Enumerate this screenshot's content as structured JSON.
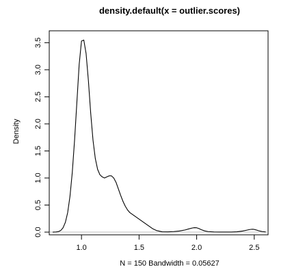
{
  "chart_data": {
    "type": "line",
    "title": "density.default(x = outlier.scores)",
    "xlabel": "N = 150   Bandwidth = 0.05627",
    "ylabel": "Density",
    "xlim": [
      0.72,
      2.62
    ],
    "ylim": [
      -0.05,
      3.72
    ],
    "x_ticks": [
      1.0,
      1.5,
      2.0,
      2.5
    ],
    "x_tick_labels": [
      "1.0",
      "1.5",
      "2.0",
      "2.5"
    ],
    "y_ticks": [
      0.0,
      0.5,
      1.0,
      1.5,
      2.0,
      2.5,
      3.0,
      3.5
    ],
    "y_tick_labels": [
      "0.0",
      "0.5",
      "1.0",
      "1.5",
      "2.0",
      "2.5",
      "3.0",
      "3.5"
    ],
    "grid": false,
    "zero_line": true,
    "colors": {
      "line": "#000000",
      "zero_line": "#bebebe",
      "axes": "#000000",
      "background": "#ffffff"
    },
    "series": [
      {
        "x": [
          0.75,
          0.78,
          0.8,
          0.82,
          0.84,
          0.86,
          0.88,
          0.9,
          0.92,
          0.94,
          0.96,
          0.98,
          1.0,
          1.02,
          1.04,
          1.06,
          1.08,
          1.1,
          1.12,
          1.14,
          1.16,
          1.18,
          1.2,
          1.22,
          1.24,
          1.26,
          1.28,
          1.3,
          1.32,
          1.34,
          1.36,
          1.38,
          1.4,
          1.42,
          1.44,
          1.46,
          1.48,
          1.5,
          1.52,
          1.54,
          1.56,
          1.58,
          1.6,
          1.62,
          1.65,
          1.7,
          1.75,
          1.8,
          1.85,
          1.9,
          1.93,
          1.96,
          1.98,
          2.0,
          2.02,
          2.04,
          2.07,
          2.1,
          2.15,
          2.2,
          2.25,
          2.3,
          2.35,
          2.4,
          2.43,
          2.46,
          2.48,
          2.5,
          2.52,
          2.54,
          2.57,
          2.6
        ],
        "y": [
          0.0,
          0.003,
          0.01,
          0.03,
          0.08,
          0.18,
          0.36,
          0.66,
          1.1,
          1.7,
          2.4,
          3.1,
          3.53,
          3.55,
          3.3,
          2.8,
          2.2,
          1.7,
          1.36,
          1.16,
          1.06,
          1.02,
          1.0,
          1.02,
          1.04,
          1.04,
          1.0,
          0.92,
          0.8,
          0.68,
          0.57,
          0.48,
          0.41,
          0.36,
          0.33,
          0.3,
          0.27,
          0.24,
          0.21,
          0.18,
          0.15,
          0.12,
          0.09,
          0.06,
          0.03,
          0.006,
          0.004,
          0.01,
          0.02,
          0.04,
          0.058,
          0.075,
          0.082,
          0.08,
          0.065,
          0.045,
          0.022,
          0.01,
          0.003,
          0.001,
          0.001,
          0.002,
          0.006,
          0.02,
          0.034,
          0.048,
          0.053,
          0.05,
          0.038,
          0.024,
          0.01,
          0.003
        ]
      }
    ]
  }
}
